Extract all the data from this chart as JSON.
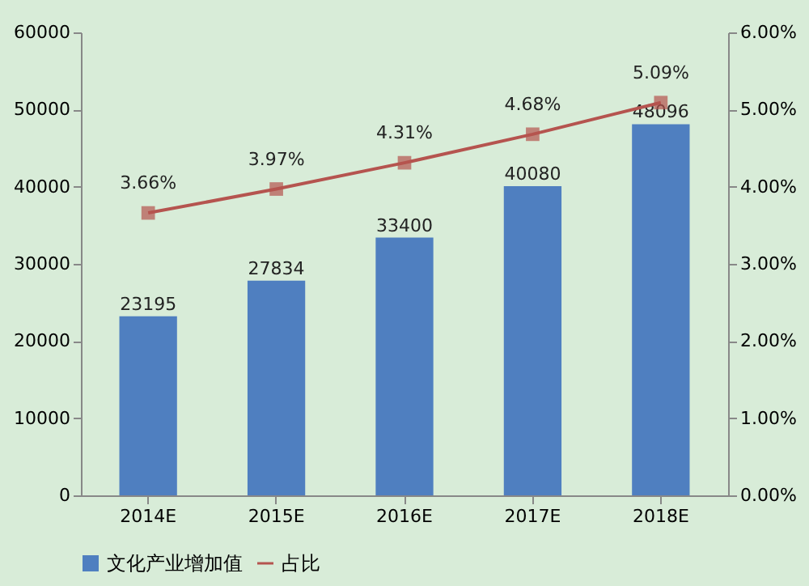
{
  "chart_data": {
    "type": "bar",
    "categories": [
      "2014E",
      "2015E",
      "2016E",
      "2017E",
      "2018E"
    ],
    "series": [
      {
        "name": "文化产业增加值",
        "color": "#4f7fc0",
        "values": [
          23195,
          27834,
          33400,
          40080,
          48096
        ],
        "data_labels": true
      },
      {
        "name": "占比",
        "type": "line",
        "axis": "y2",
        "color": "#b5544f",
        "values": [
          3.66,
          3.97,
          4.31,
          4.68,
          5.09
        ],
        "value_labels": [
          "3.66%",
          "3.97%",
          "4.31%",
          "4.68%",
          "5.09%"
        ]
      }
    ],
    "ylim": [
      0,
      60000
    ],
    "yticks": [
      0,
      10000,
      20000,
      30000,
      40000,
      50000,
      60000
    ],
    "y2lim": [
      0,
      6
    ],
    "y2ticks": [
      {
        "value": 0,
        "label": "0.00%"
      },
      {
        "value": 1,
        "label": "1.00%"
      },
      {
        "value": 2,
        "label": "2.00%"
      },
      {
        "value": 3,
        "label": "3.00%"
      },
      {
        "value": 4,
        "label": "4.00%"
      },
      {
        "value": 5,
        "label": "5.00%"
      },
      {
        "value": 6,
        "label": "6.00%"
      }
    ],
    "marker": "square",
    "grid": false,
    "legend": "bottom"
  }
}
